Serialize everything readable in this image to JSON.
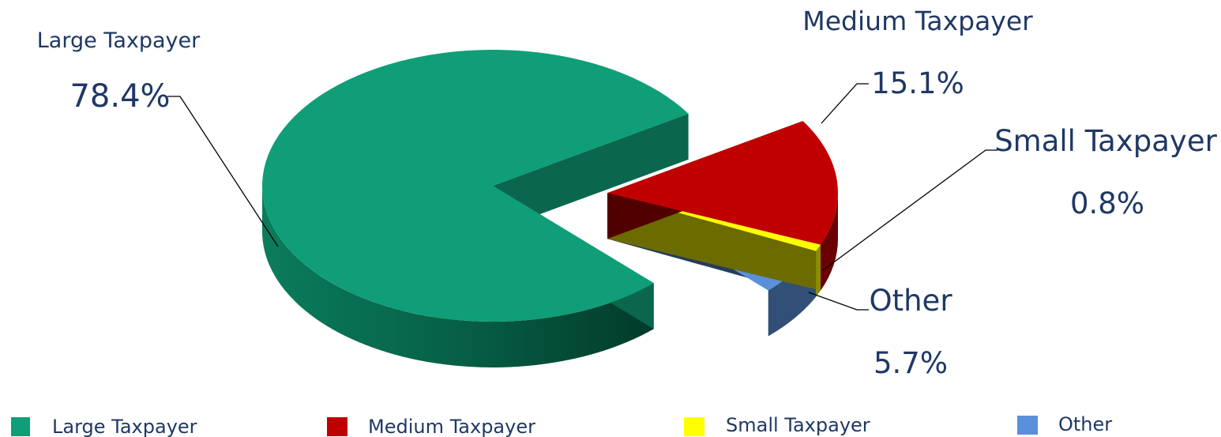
{
  "chart_data": {
    "type": "pie",
    "style": "3d-exploded",
    "categories": [
      "Large Taxpayer",
      "Medium Taxpayer",
      "Small Taxpayer",
      "Other"
    ],
    "values": [
      78.4,
      15.1,
      0.8,
      5.7
    ],
    "value_labels": [
      "78.4%",
      "15.1%",
      "0.8%",
      "5.7%"
    ],
    "unit": "%",
    "colors": [
      "#0f9e78",
      "#c00000",
      "#ffff00",
      "#5b8fd9"
    ],
    "legend": {
      "position": "bottom",
      "entries": [
        "Large Taxpayer",
        "Medium Taxpayer",
        "Small Taxpayer",
        "Other"
      ]
    }
  }
}
